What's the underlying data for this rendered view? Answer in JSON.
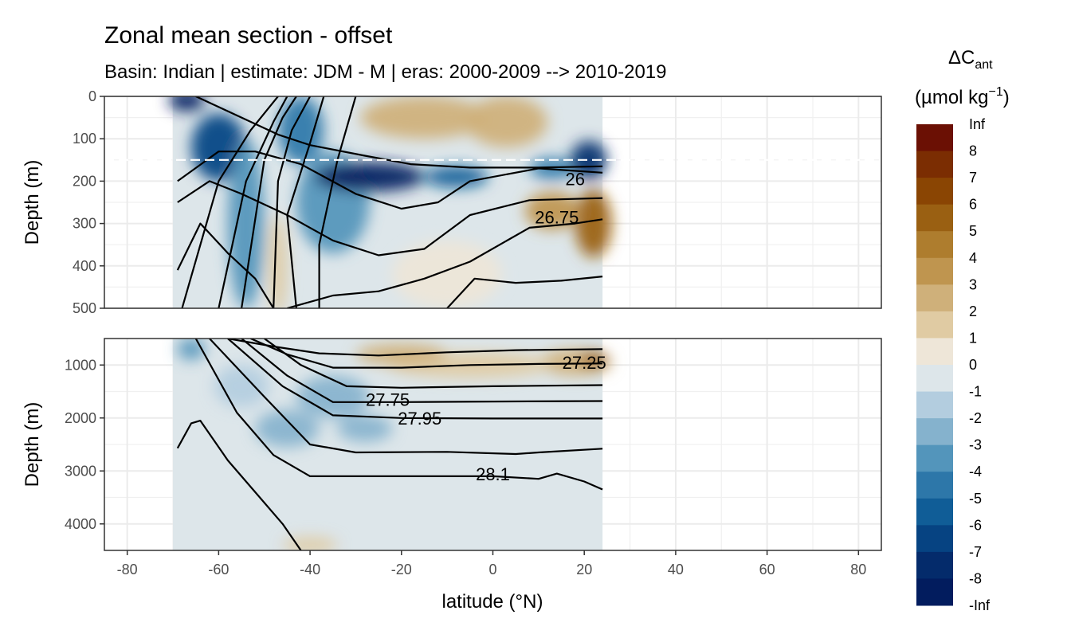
{
  "chart_data": {
    "type": "heatmap",
    "title": "Zonal mean section - offset",
    "subtitle": "Basin: Indian | estimate: JDM - M | eras: 2000-2009 --> 2010-2019",
    "xlabel": "latitude (°N)",
    "ylabel": "Depth (m)",
    "xlim": [
      -85,
      85
    ],
    "x_ticks": [
      -80,
      -60,
      -40,
      -20,
      0,
      20,
      40,
      60,
      80
    ],
    "x_tick_labels": [
      "-80",
      "-60",
      "-40",
      "-20",
      "0",
      "20",
      "40",
      "60",
      "80"
    ],
    "data_lat_range": [
      -70,
      24
    ],
    "dashed_line_depth": 150,
    "panels": [
      {
        "name": "upper",
        "ylim": [
          0,
          500
        ],
        "y_ticks": [
          0,
          100,
          200,
          300,
          400,
          500
        ],
        "y_tick_labels": [
          "0",
          "100",
          "200",
          "300",
          "400",
          "500"
        ],
        "blobs": [
          {
            "lat": -67,
            "depth": 10,
            "rlat": 4,
            "rdepth": 25,
            "level": -8
          },
          {
            "lat": -60,
            "depth": 120,
            "rlat": 6,
            "rdepth": 80,
            "level": -6
          },
          {
            "lat": -54,
            "depth": 300,
            "rlat": 4,
            "rdepth": 200,
            "level": -3
          },
          {
            "lat": -42,
            "depth": 80,
            "rlat": 5,
            "rdepth": 80,
            "level": -4
          },
          {
            "lat": -35,
            "depth": 250,
            "rlat": 8,
            "rdepth": 120,
            "level": -3
          },
          {
            "lat": -27,
            "depth": 190,
            "rlat": 12,
            "rdepth": 35,
            "level": -8
          },
          {
            "lat": -8,
            "depth": 190,
            "rlat": 7,
            "rdepth": 25,
            "level": -5
          },
          {
            "lat": 13,
            "depth": 170,
            "rlat": 5,
            "rdepth": 25,
            "level": -4
          },
          {
            "lat": 21,
            "depth": 150,
            "rlat": 4,
            "rdepth": 45,
            "level": -7
          },
          {
            "lat": -15,
            "depth": 50,
            "rlat": 14,
            "rdepth": 50,
            "level": 2
          },
          {
            "lat": 3,
            "depth": 60,
            "rlat": 9,
            "rdepth": 60,
            "level": 2
          },
          {
            "lat": 22,
            "depth": 300,
            "rlat": 4,
            "rdepth": 80,
            "level": 5
          },
          {
            "lat": 13,
            "depth": 270,
            "rlat": 6,
            "rdepth": 45,
            "level": 3
          },
          {
            "lat": -47,
            "depth": 400,
            "rlat": 2,
            "rdepth": 120,
            "level": 1
          },
          {
            "lat": -10,
            "depth": 420,
            "rlat": 12,
            "rdepth": 80,
            "level": 0
          }
        ],
        "isopycnals": [
          {
            "points": [
              [
                -65,
                0
              ],
              [
                -55,
                50
              ],
              [
                -47,
                90
              ],
              [
                -40,
                115
              ],
              [
                -28,
                140
              ],
              [
                -18,
                160
              ],
              [
                -5,
                168
              ],
              [
                10,
                168
              ],
              [
                24,
                165
              ]
            ]
          },
          {
            "points": [
              [
                -69,
                200
              ],
              [
                -60,
                130
              ],
              [
                -52,
                130
              ],
              [
                -42,
                160
              ],
              [
                -30,
                230
              ],
              [
                -20,
                265
              ],
              [
                -12,
                250
              ],
              [
                -5,
                200
              ],
              [
                10,
                170
              ],
              [
                24,
                180
              ]
            ]
          },
          {
            "points": [
              [
                -69,
                250
              ],
              [
                -62,
                200
              ],
              [
                -55,
                230
              ],
              [
                -45,
                280
              ],
              [
                -35,
                340
              ],
              [
                -25,
                375
              ],
              [
                -15,
                360
              ],
              [
                -5,
                280
              ],
              [
                8,
                245
              ],
              [
                24,
                240
              ]
            ]
          },
          {
            "points": [
              [
                -69,
                410
              ],
              [
                -64,
                300
              ],
              [
                -58,
                370
              ],
              [
                -52,
                430
              ],
              [
                -48,
                500
              ]
            ]
          },
          {
            "points": [
              [
                -45,
                500
              ],
              [
                -35,
                470
              ],
              [
                -25,
                460
              ],
              [
                -15,
                430
              ],
              [
                -5,
                390
              ],
              [
                8,
                310
              ],
              [
                18,
                300
              ],
              [
                24,
                290
              ]
            ]
          },
          {
            "points": [
              [
                -10,
                500
              ],
              [
                -4,
                430
              ],
              [
                5,
                440
              ],
              [
                15,
                435
              ],
              [
                24,
                425
              ]
            ]
          },
          {
            "points": [
              [
                -68,
                500
              ],
              [
                -60,
                200
              ],
              [
                -53,
                80
              ],
              [
                -47,
                0
              ]
            ]
          },
          {
            "points": [
              [
                -60,
                500
              ],
              [
                -54,
                200
              ],
              [
                -48,
                60
              ],
              [
                -45,
                0
              ]
            ]
          },
          {
            "points": [
              [
                -55,
                500
              ],
              [
                -50,
                150
              ],
              [
                -46,
                50
              ],
              [
                -43,
                0
              ]
            ]
          },
          {
            "points": [
              [
                -48,
                500
              ],
              [
                -47,
                200
              ],
              [
                -44,
                80
              ],
              [
                -40,
                0
              ]
            ]
          },
          {
            "points": [
              [
                -43,
                500
              ],
              [
                -45,
                280
              ],
              [
                -40,
                110
              ],
              [
                -37,
                0
              ]
            ]
          },
          {
            "points": [
              [
                -38,
                500
              ],
              [
                -38,
                350
              ],
              [
                -34,
                150
              ],
              [
                -30,
                0
              ]
            ]
          }
        ],
        "contour_labels": [
          {
            "text": "26",
            "lat": 18,
            "depth": 195
          },
          {
            "text": "26.75",
            "lat": 14,
            "depth": 285
          }
        ]
      },
      {
        "name": "lower",
        "ylim": [
          500,
          4500
        ],
        "y_ticks": [
          1000,
          2000,
          3000,
          4000
        ],
        "y_tick_labels": [
          "1000",
          "2000",
          "3000",
          "4000"
        ],
        "blobs": [
          {
            "lat": 18,
            "depth": 950,
            "rlat": 8,
            "rdepth": 250,
            "level": 2
          },
          {
            "lat": 22,
            "depth": 900,
            "rlat": 3,
            "rdepth": 150,
            "level": 5
          },
          {
            "lat": -5,
            "depth": 1000,
            "rlat": 18,
            "rdepth": 250,
            "level": 1
          },
          {
            "lat": -20,
            "depth": 800,
            "rlat": 10,
            "rdepth": 200,
            "level": 2
          },
          {
            "lat": -35,
            "depth": 1600,
            "rlat": 8,
            "rdepth": 400,
            "level": -2
          },
          {
            "lat": -45,
            "depth": 2200,
            "rlat": 7,
            "rdepth": 350,
            "level": -2
          },
          {
            "lat": -55,
            "depth": 1400,
            "rlat": 6,
            "rdepth": 400,
            "level": -1
          },
          {
            "lat": -66,
            "depth": 700,
            "rlat": 3,
            "rdepth": 200,
            "level": -3
          },
          {
            "lat": -28,
            "depth": 2200,
            "rlat": 6,
            "rdepth": 250,
            "level": -2
          },
          {
            "lat": -40,
            "depth": 4400,
            "rlat": 6,
            "rdepth": 150,
            "level": 1
          }
        ],
        "isopycnals": [
          {
            "points": [
              [
                -58,
                500
              ],
              [
                -48,
                650
              ],
              [
                -38,
                780
              ],
              [
                -25,
                820
              ],
              [
                -10,
                760
              ],
              [
                5,
                720
              ],
              [
                24,
                700
              ]
            ]
          },
          {
            "points": [
              [
                -53,
                500
              ],
              [
                -45,
                800
              ],
              [
                -35,
                1050
              ],
              [
                -20,
                1050
              ],
              [
                -5,
                1000
              ],
              [
                10,
                980
              ],
              [
                24,
                970
              ]
            ]
          },
          {
            "points": [
              [
                -50,
                500
              ],
              [
                -42,
                1000
              ],
              [
                -32,
                1400
              ],
              [
                -20,
                1430
              ],
              [
                0,
                1400
              ],
              [
                24,
                1380
              ]
            ]
          },
          {
            "points": [
              [
                -55,
                500
              ],
              [
                -45,
                1200
              ],
              [
                -35,
                1700
              ],
              [
                -20,
                1700
              ],
              [
                0,
                1690
              ],
              [
                24,
                1680
              ]
            ]
          },
          {
            "points": [
              [
                -58,
                500
              ],
              [
                -46,
                1400
              ],
              [
                -35,
                1950
              ],
              [
                -20,
                2000
              ],
              [
                0,
                2010
              ],
              [
                24,
                2010
              ]
            ]
          },
          {
            "points": [
              [
                -62,
                500
              ],
              [
                -50,
                1600
              ],
              [
                -40,
                2500
              ],
              [
                -30,
                2650
              ],
              [
                -10,
                2640
              ],
              [
                5,
                2680
              ],
              [
                10,
                2650
              ],
              [
                24,
                2580
              ]
            ]
          },
          {
            "points": [
              [
                -65,
                500
              ],
              [
                -56,
                1900
              ],
              [
                -48,
                2700
              ],
              [
                -40,
                3100
              ],
              [
                -20,
                3100
              ],
              [
                0,
                3100
              ],
              [
                10,
                3150
              ],
              [
                14,
                3050
              ],
              [
                20,
                3200
              ],
              [
                24,
                3350
              ]
            ]
          },
          {
            "points": [
              [
                -69,
                2570
              ],
              [
                -66,
                2100
              ],
              [
                -64,
                2050
              ],
              [
                -58,
                2800
              ],
              [
                -52,
                3400
              ],
              [
                -46,
                4000
              ],
              [
                -42,
                4500
              ]
            ]
          }
        ],
        "contour_labels": [
          {
            "text": "27.25",
            "lat": 20,
            "depth": 950
          },
          {
            "text": "27.75",
            "lat": -23,
            "depth": 1650
          },
          {
            "text": "27.95",
            "lat": -16,
            "depth": 2000
          },
          {
            "text": "28.1",
            "lat": 0,
            "depth": 3060
          }
        ]
      }
    ],
    "colorbar": {
      "title_main": "ΔC",
      "title_sub": "ant",
      "units_main": "(µmol kg",
      "units_sup": "−1",
      "units_close": ")",
      "labels": [
        "Inf",
        "8",
        "7",
        "6",
        "5",
        "4",
        "3",
        "2",
        "1",
        "0",
        "-1",
        "-2",
        "-3",
        "-4",
        "-5",
        "-6",
        "-7",
        "-8",
        "-Inf"
      ],
      "colors": [
        "#6b1004",
        "#7b2d02",
        "#8a4503",
        "#9a6012",
        "#ae7d2e",
        "#bf954f",
        "#cfb07a",
        "#e0cba3",
        "#eee6d8",
        "#dde6ea",
        "#b3cddf",
        "#85b2cd",
        "#5395bb",
        "#2d77a9",
        "#105d97",
        "#064382",
        "#042b6b",
        "#021c5e"
      ]
    }
  }
}
